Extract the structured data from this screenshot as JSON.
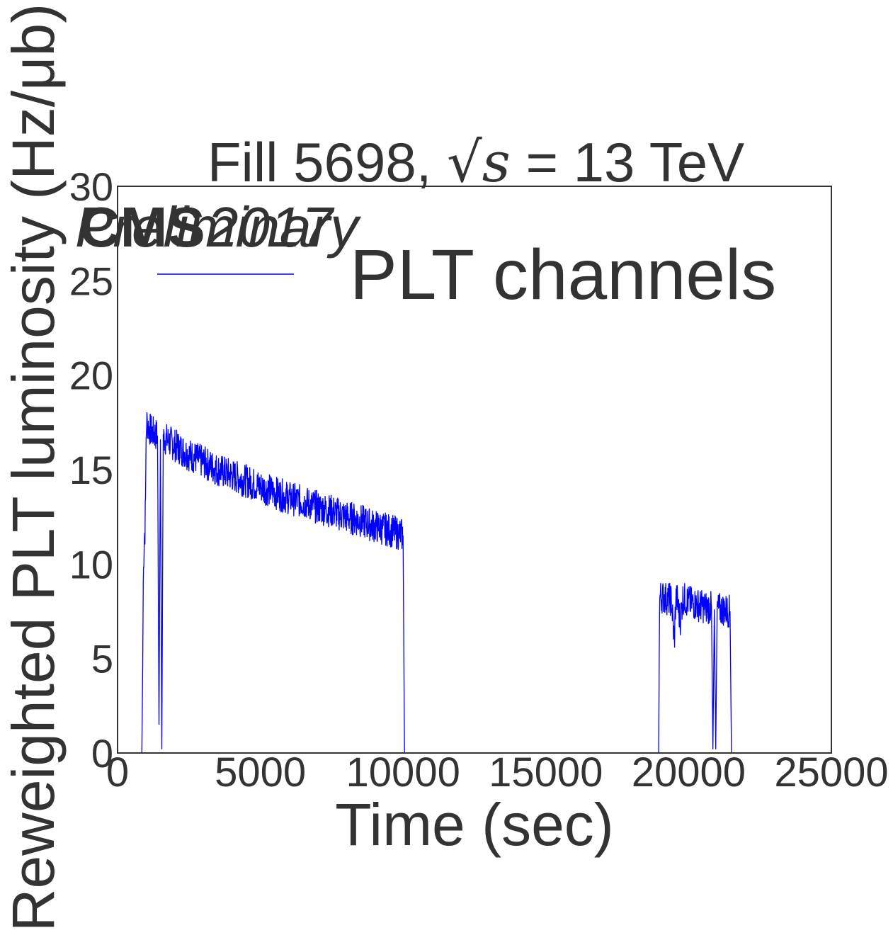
{
  "chart_data": {
    "type": "line",
    "title_prefix": "Fill 5698, ",
    "title_math": "√s",
    "title_suffix": " = 13 TeV",
    "xlabel": "Time (sec)",
    "ylabel": "Reweighted PLT luminosity (Hz/μb)",
    "xlim": [
      0,
      25000
    ],
    "ylim": [
      0,
      30
    ],
    "xticks": [
      0,
      5000,
      10000,
      15000,
      20000,
      25000
    ],
    "yticks": [
      0,
      5,
      10,
      15,
      20,
      25,
      30
    ],
    "grid": false,
    "legend_placement": "top-right",
    "legend_label": "PLT channels",
    "annotations": [
      "CMS",
      "Preliminary",
      "2017"
    ],
    "line_color": "#0000ff",
    "series": [
      {
        "x": [
          850,
          880,
          900,
          920,
          940,
          960,
          980,
          1000,
          1020,
          1050,
          1100,
          1200,
          1300,
          1400,
          1450,
          1500,
          1550,
          1600,
          1700,
          1800,
          2000,
          2500,
          3000,
          3500,
          4000,
          4500,
          5000,
          5500,
          6000,
          6500,
          7000,
          7500,
          8000,
          8500,
          9000,
          9500,
          9900,
          10000,
          10050
        ],
        "y": [
          0,
          4.5,
          9.0,
          10.5,
          11.5,
          11.8,
          13.5,
          16.5,
          17.6,
          17.4,
          17.2,
          17.0,
          16.9,
          16.8,
          1.5,
          16.6,
          0.2,
          16.7,
          16.6,
          16.5,
          16.3,
          15.8,
          15.4,
          15.0,
          14.7,
          14.4,
          14.1,
          13.8,
          13.5,
          13.3,
          13.0,
          12.8,
          12.5,
          12.3,
          12.0,
          11.8,
          11.6,
          11.5,
          0
        ]
      },
      {
        "x": [
          18950,
          18980,
          19000,
          19200,
          19400,
          19500,
          19550,
          19600,
          19700,
          19800,
          20000,
          20200,
          20400,
          20600,
          20800,
          20850,
          20900,
          20950,
          21000,
          21200,
          21450,
          21500
        ],
        "y": [
          0,
          7.8,
          8.3,
          8.2,
          8.1,
          5.8,
          8.2,
          8.1,
          7.0,
          8.2,
          8.0,
          7.9,
          7.8,
          7.7,
          7.7,
          0.2,
          7.6,
          0.2,
          7.6,
          7.6,
          7.5,
          0
        ]
      }
    ],
    "band_width": 0.9
  }
}
